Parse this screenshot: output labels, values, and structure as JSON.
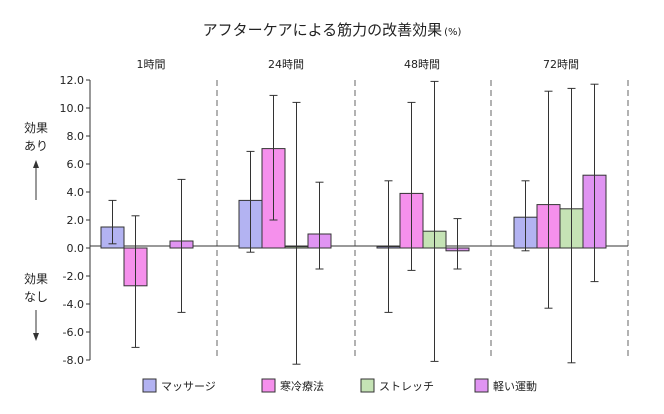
{
  "chart_data": {
    "type": "bar",
    "title": "アフターケアによる筋力の改善効果",
    "title_unit": "(%)",
    "groups": [
      "1時間",
      "24時間",
      "48時間",
      "72時間"
    ],
    "ylim": [
      -8,
      12
    ],
    "yticks": [
      -8,
      -6,
      -4,
      -2,
      0,
      2,
      4,
      6,
      8,
      10,
      12
    ],
    "ytick_labels": [
      "-8.0",
      "-6.0",
      "-4.0",
      "-2.0",
      "0.0",
      "2.0",
      "4.0",
      "6.0",
      "8.0",
      "10.0",
      "12.0"
    ],
    "side_labels": {
      "positive": "効果あり",
      "negative": "効果なし"
    },
    "series": [
      {
        "name": "マッサージ",
        "color": "#b3b3f2",
        "values": [
          1.5,
          3.4,
          0.1,
          2.2
        ],
        "err_low": [
          0.3,
          -0.3,
          -4.6,
          -0.2
        ],
        "err_high": [
          3.4,
          6.9,
          4.8,
          4.8
        ]
      },
      {
        "name": "寒冷療法",
        "color": "#f590ec",
        "values": [
          -2.7,
          7.1,
          3.9,
          3.1
        ],
        "err_low": [
          -7.1,
          2.0,
          -1.6,
          -4.3
        ],
        "err_high": [
          2.3,
          10.9,
          10.4,
          11.2
        ]
      },
      {
        "name": "ストレッチ",
        "color": "#c5e3b5",
        "values": [
          0.0,
          0.1,
          1.2,
          2.8
        ],
        "err_low": [
          0.0,
          -8.3,
          -8.1,
          -8.2
        ],
        "err_high": [
          0.0,
          10.4,
          11.9,
          11.4
        ]
      },
      {
        "name": "軽い運動",
        "color": "#e094f2",
        "values": [
          0.5,
          1.0,
          -0.2,
          5.2
        ],
        "err_low": [
          -4.6,
          -1.5,
          -1.5,
          -2.4
        ],
        "err_high": [
          4.9,
          4.7,
          2.1,
          11.7
        ]
      }
    ]
  }
}
